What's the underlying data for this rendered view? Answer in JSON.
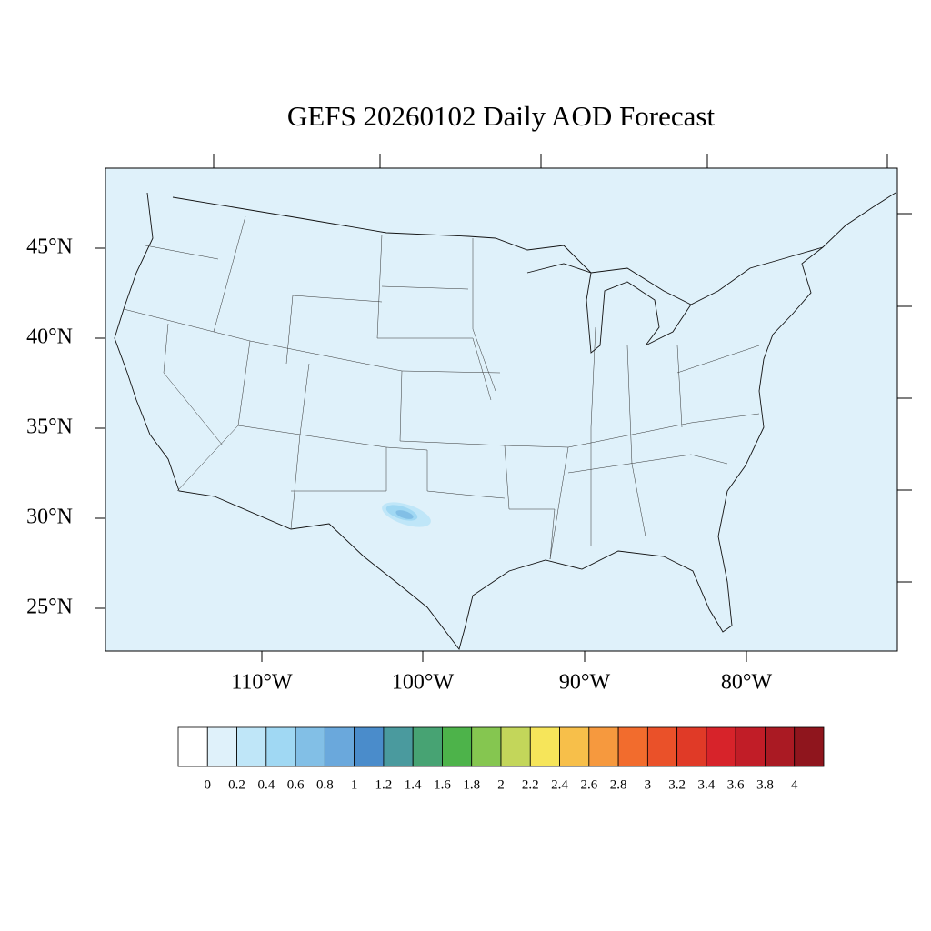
{
  "title": "GEFS 20260102 Daily AOD Forecast",
  "lat_labels": [
    "45°N",
    "40°N",
    "35°N",
    "30°N",
    "25°N"
  ],
  "lon_labels": [
    "110°W",
    "100°W",
    "90°W",
    "80°W"
  ],
  "colorbar": {
    "colors": [
      "#ffffff",
      "#dff1fa",
      "#bfe6f8",
      "#a0d8f3",
      "#82bfe6",
      "#6aa8dc",
      "#4a8ccb",
      "#4a9a9e",
      "#47a373",
      "#4db34a",
      "#85c650",
      "#c3d65a",
      "#f6e55a",
      "#f7bf4a",
      "#f6993e",
      "#f26c2d",
      "#ea5129",
      "#e03a27",
      "#d7232a",
      "#c11d27",
      "#aa1a23",
      "#8f151d"
    ],
    "labels": [
      "0",
      "0.2",
      "0.4",
      "0.6",
      "0.8",
      "1",
      "1.2",
      "1.4",
      "1.6",
      "1.8",
      "2",
      "2.2",
      "2.4",
      "2.6",
      "2.8",
      "3",
      "3.2",
      "3.4",
      "3.6",
      "3.8",
      "4"
    ]
  }
}
